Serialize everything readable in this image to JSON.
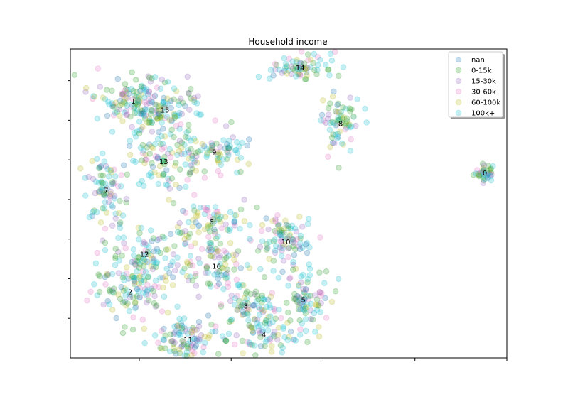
{
  "chart_data": {
    "type": "scatter",
    "title": "Household income",
    "xlabel": "",
    "ylabel": "",
    "xlim": [
      -45,
      50
    ],
    "ylim": [
      -40,
      38
    ],
    "grid": false,
    "legend_position": "top-right",
    "marker_alpha": 0.25,
    "series": [
      {
        "name": "nan",
        "color": "#1f77b4"
      },
      {
        "name": "0-15k",
        "color": "#2ca02c"
      },
      {
        "name": "15-30k",
        "color": "#9467bd"
      },
      {
        "name": "30-60k",
        "color": "#e377c2"
      },
      {
        "name": "60-100k",
        "color": "#bcbd22"
      },
      {
        "name": "100k+",
        "color": "#17becf"
      }
    ],
    "clusters": [
      {
        "label": "0",
        "x": 45.2,
        "y": 6.8,
        "sx": 1.2,
        "sy": 1.1,
        "n": 40
      },
      {
        "label": "1",
        "x": -31.3,
        "y": 24.9,
        "sx": 5.0,
        "sy": 3.2,
        "n": 130
      },
      {
        "label": "2",
        "x": -32.0,
        "y": -23.2,
        "sx": 4.0,
        "sy": 4.0,
        "n": 100
      },
      {
        "label": "3",
        "x": -6.8,
        "y": -26.8,
        "sx": 3.5,
        "sy": 2.5,
        "n": 70
      },
      {
        "label": "4",
        "x": -2.9,
        "y": -34.1,
        "sx": 4.0,
        "sy": 2.5,
        "n": 70
      },
      {
        "label": "5",
        "x": 5.7,
        "y": -25.2,
        "sx": 3.0,
        "sy": 4.5,
        "n": 90
      },
      {
        "label": "6",
        "x": -14.3,
        "y": -5.6,
        "sx": 4.0,
        "sy": 3.0,
        "n": 80
      },
      {
        "label": "7",
        "x": -37.2,
        "y": 2.4,
        "sx": 2.5,
        "sy": 4.5,
        "n": 80
      },
      {
        "label": "8",
        "x": 13.8,
        "y": 19.3,
        "sx": 2.5,
        "sy": 3.5,
        "n": 70
      },
      {
        "label": "9",
        "x": -13.7,
        "y": 12.1,
        "sx": 3.5,
        "sy": 3.0,
        "n": 80
      },
      {
        "label": "10",
        "x": 1.9,
        "y": -10.6,
        "sx": 3.0,
        "sy": 3.5,
        "n": 90
      },
      {
        "label": "11",
        "x": -19.4,
        "y": -35.3,
        "sx": 4.0,
        "sy": 3.0,
        "n": 100
      },
      {
        "label": "12",
        "x": -28.9,
        "y": -13.7,
        "sx": 4.0,
        "sy": 4.0,
        "n": 100
      },
      {
        "label": "13",
        "x": -24.7,
        "y": 9.7,
        "sx": 4.0,
        "sy": 4.0,
        "n": 100
      },
      {
        "label": "14",
        "x": 5.0,
        "y": 33.3,
        "sx": 3.0,
        "sy": 2.0,
        "n": 70
      },
      {
        "label": "15",
        "x": -24.4,
        "y": 22.7,
        "sx": 3.5,
        "sy": 3.0,
        "n": 80
      },
      {
        "label": "16",
        "x": -13.2,
        "y": -16.8,
        "sx": 4.0,
        "sy": 4.0,
        "n": 90
      }
    ]
  }
}
